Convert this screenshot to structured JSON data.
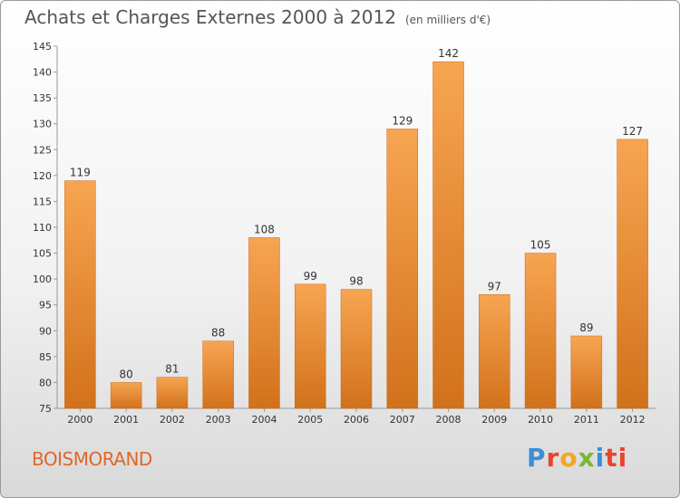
{
  "title": "Achats et Charges Externes 2000 à 2012",
  "unit": "(en milliers d'€)",
  "location": "BOISMORAND",
  "logo": {
    "text": [
      "P",
      "r",
      "o",
      "x",
      "i",
      "ti"
    ]
  },
  "colors": {
    "bar_top": "#f7a552",
    "bar_bottom": "#d2711b",
    "bar_stroke": "#c96a1a",
    "axis": "#999999",
    "text": "#333333"
  },
  "chart_data": {
    "type": "bar",
    "categories": [
      "2000",
      "2001",
      "2002",
      "2003",
      "2004",
      "2005",
      "2006",
      "2007",
      "2008",
      "2009",
      "2010",
      "2011",
      "2012"
    ],
    "values": [
      119,
      80,
      81,
      88,
      108,
      99,
      98,
      129,
      142,
      97,
      105,
      89,
      127
    ],
    "ylim": [
      75,
      145
    ],
    "yticks": [
      75,
      80,
      85,
      90,
      95,
      100,
      105,
      110,
      115,
      120,
      125,
      130,
      135,
      140,
      145
    ],
    "grid": false,
    "title": "Achats et Charges Externes 2000 à 2012",
    "xlabel": "",
    "ylabel": ""
  }
}
